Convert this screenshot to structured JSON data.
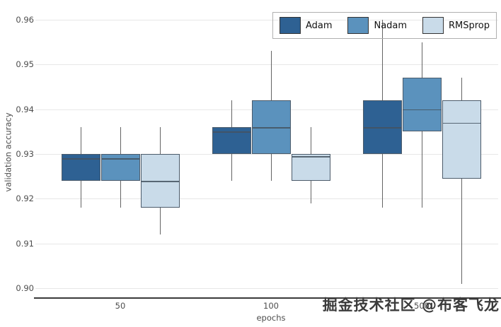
{
  "watermark": {
    "text": "掘金技术社区 @布客飞龙"
  },
  "chart_data": {
    "type": "boxplot",
    "title": "",
    "xlabel": "epochs",
    "ylabel": "validation accuracy",
    "ylim": [
      0.9,
      0.96
    ],
    "yticks": [
      0.9,
      0.91,
      0.92,
      0.93,
      0.94,
      0.95,
      0.96
    ],
    "categories": [
      "50",
      "100",
      "500"
    ],
    "grid": true,
    "legend_position": "top-right",
    "colors": {
      "adam": "#2e6193",
      "nadam": "#5b92bd",
      "rmsprop": "#c9dbe9"
    },
    "series": [
      {
        "name": "Adam",
        "color": "#2e6193",
        "boxes": [
          {
            "low": 0.918,
            "q1": 0.924,
            "median": 0.929,
            "q3": 0.93,
            "high": 0.936
          },
          {
            "low": 0.924,
            "q1": 0.93,
            "median": 0.935,
            "q3": 0.936,
            "high": 0.942
          },
          {
            "low": 0.918,
            "q1": 0.93,
            "median": 0.936,
            "q3": 0.942,
            "high": 0.96
          }
        ]
      },
      {
        "name": "Nadam",
        "color": "#5b92bd",
        "boxes": [
          {
            "low": 0.918,
            "q1": 0.924,
            "median": 0.929,
            "q3": 0.93,
            "high": 0.936
          },
          {
            "low": 0.924,
            "q1": 0.93,
            "median": 0.936,
            "q3": 0.942,
            "high": 0.953
          },
          {
            "low": 0.918,
            "q1": 0.935,
            "median": 0.94,
            "q3": 0.947,
            "high": 0.955
          }
        ]
      },
      {
        "name": "RMSprop",
        "color": "#c9dbe9",
        "boxes": [
          {
            "low": 0.912,
            "q1": 0.918,
            "median": 0.924,
            "q3": 0.93,
            "high": 0.936
          },
          {
            "low": 0.919,
            "q1": 0.924,
            "median": 0.9295,
            "q3": 0.93,
            "high": 0.936
          },
          {
            "low": 0.901,
            "q1": 0.9245,
            "median": 0.937,
            "q3": 0.942,
            "high": 0.947
          }
        ]
      }
    ]
  }
}
